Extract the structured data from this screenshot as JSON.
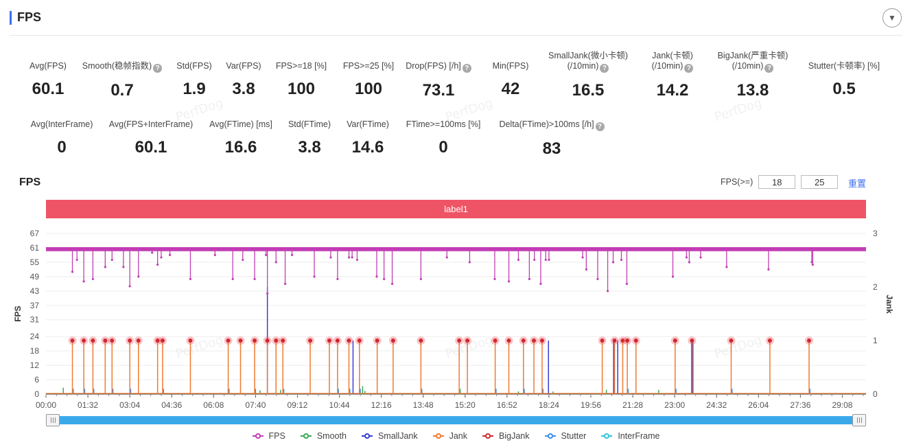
{
  "header": {
    "title": "FPS"
  },
  "stats_row1": [
    {
      "label": "Avg(FPS)",
      "value": "60.1"
    },
    {
      "label": "Smooth(稳帧指数)",
      "value": "0.7",
      "help": true
    },
    {
      "label": "Std(FPS)",
      "value": "1.9"
    },
    {
      "label": "Var(FPS)",
      "value": "3.8"
    },
    {
      "label": "FPS>=18 [%]",
      "value": "100"
    },
    {
      "label": "FPS>=25 [%]",
      "value": "100"
    },
    {
      "label": "Drop(FPS) [/h]",
      "value": "73.1",
      "help": true
    },
    {
      "label": "Min(FPS)",
      "value": "42"
    },
    {
      "label": "SmallJank(微小卡顿)",
      "label2": "(/10min)",
      "value": "16.5",
      "help": true
    },
    {
      "label": "Jank(卡顿)",
      "label2": "(/10min)",
      "value": "14.2",
      "help": true
    },
    {
      "label": "BigJank(严重卡顿)",
      "label2": "(/10min)",
      "value": "13.8",
      "help": true
    },
    {
      "label": "Stutter(卡顿率) [%]",
      "value": "0.5"
    }
  ],
  "stats_row2": [
    {
      "label": "Avg(InterFrame)",
      "value": "0"
    },
    {
      "label": "Avg(FPS+InterFrame)",
      "value": "60.1"
    },
    {
      "label": "Avg(FTime) [ms]",
      "value": "16.6"
    },
    {
      "label": "Std(FTime)",
      "value": "3.8"
    },
    {
      "label": "Var(FTime)",
      "value": "14.6"
    },
    {
      "label": "FTime>=100ms [%]",
      "value": "0"
    },
    {
      "label": "Delta(FTime)>100ms [/h]",
      "value": "83",
      "help": true
    }
  ],
  "watermark": "PerfDog",
  "chart_section": {
    "title": "FPS",
    "filter_label": "FPS(>=)",
    "filter_value_1": "18",
    "filter_value_2": "25",
    "reset_label": "重置",
    "band_label": "label1"
  },
  "colors": {
    "fps": "#c23eb4",
    "smooth": "#3bab55",
    "smalljank": "#3a3bd6",
    "jank": "#f07a30",
    "bigjank": "#d0282e",
    "stutter": "#3a8ee6",
    "interframe": "#2fc7d6"
  },
  "chart_data": {
    "type": "line",
    "title": "",
    "xlabel": "",
    "ylabel": "FPS",
    "y2label": "Jank",
    "x_ticks": [
      "00:00",
      "01:32",
      "03:04",
      "04:36",
      "06:08",
      "07:40",
      "09:12",
      "10:44",
      "12:16",
      "13:48",
      "15:20",
      "16:52",
      "18:24",
      "19:56",
      "21:28",
      "23:00",
      "24:32",
      "26:04",
      "27:36",
      "29:08"
    ],
    "x_range_sec": [
      0,
      1800
    ],
    "y_ticks": [
      0,
      6,
      12,
      18,
      24,
      31,
      37,
      43,
      49,
      55,
      61,
      67
    ],
    "ylim": [
      0,
      67
    ],
    "y2_ticks": [
      0,
      1,
      2,
      3
    ],
    "y2lim": [
      0,
      3
    ],
    "series": [
      {
        "name": "FPS",
        "baseline": 60,
        "dips": [
          [
            58,
            51
          ],
          [
            68,
            56
          ],
          [
            83,
            47
          ],
          [
            103,
            48
          ],
          [
            130,
            53
          ],
          [
            145,
            56
          ],
          [
            170,
            53
          ],
          [
            184,
            45
          ],
          [
            203,
            49
          ],
          [
            233,
            59
          ],
          [
            245,
            54
          ],
          [
            253,
            57
          ],
          [
            272,
            58
          ],
          [
            317,
            48
          ],
          [
            371,
            58
          ],
          [
            410,
            48
          ],
          [
            432,
            56
          ],
          [
            458,
            48
          ],
          [
            483,
            58
          ],
          [
            486,
            42
          ],
          [
            505,
            55
          ],
          [
            525,
            46
          ],
          [
            540,
            58
          ],
          [
            589,
            49
          ],
          [
            625,
            57
          ],
          [
            640,
            48
          ],
          [
            665,
            57
          ],
          [
            672,
            57
          ],
          [
            683,
            56
          ],
          [
            726,
            49
          ],
          [
            742,
            48
          ],
          [
            760,
            46
          ],
          [
            823,
            48
          ],
          [
            880,
            57
          ],
          [
            930,
            55
          ],
          [
            985,
            48
          ],
          [
            1016,
            47
          ],
          [
            1037,
            56
          ],
          [
            1061,
            48
          ],
          [
            1072,
            56
          ],
          [
            1086,
            46
          ],
          [
            1097,
            56
          ],
          [
            1104,
            56
          ],
          [
            1178,
            57
          ],
          [
            1186,
            52
          ],
          [
            1211,
            48
          ],
          [
            1233,
            43
          ],
          [
            1245,
            55
          ],
          [
            1263,
            56
          ],
          [
            1275,
            46
          ],
          [
            1376,
            49
          ],
          [
            1406,
            57
          ],
          [
            1412,
            55
          ],
          [
            1437,
            57
          ],
          [
            1494,
            53
          ],
          [
            1586,
            52
          ],
          [
            1681,
            55
          ],
          [
            1683,
            54
          ]
        ]
      },
      {
        "name": "Smooth",
        "spikes": [
          [
            38,
            0.12
          ],
          [
            400,
            0.08
          ],
          [
            470,
            0.07
          ],
          [
            515,
            0.08
          ],
          [
            695,
            0.15
          ],
          [
            700,
            0.06
          ],
          [
            909,
            0.1
          ],
          [
            1037,
            0.05
          ],
          [
            1113,
            0.05
          ],
          [
            1230,
            0.08
          ],
          [
            1345,
            0.08
          ]
        ]
      },
      {
        "name": "SmallJank",
        "spikes": [
          [
            486,
            2
          ],
          [
            674,
            1
          ],
          [
            1103,
            1
          ],
          [
            1246,
            1
          ],
          [
            1255,
            1
          ],
          [
            1417,
            1
          ],
          [
            1420,
            1
          ]
        ]
      },
      {
        "name": "Jank",
        "spikes": [
          58,
          83,
          103,
          130,
          145,
          184,
          203,
          245,
          256,
          317,
          400,
          427,
          458,
          486,
          505,
          520,
          580,
          622,
          640,
          665,
          688,
          727,
          762,
          823,
          907,
          925,
          986,
          1016,
          1048,
          1071,
          1089,
          1221,
          1248,
          1266,
          1276,
          1295,
          1381,
          1418,
          1504,
          1589,
          1675
        ]
      },
      {
        "name": "BigJank",
        "spikes": [
          58,
          83,
          103,
          130,
          145,
          184,
          203,
          245,
          256,
          317,
          400,
          427,
          458,
          486,
          505,
          520,
          580,
          622,
          640,
          665,
          688,
          727,
          762,
          823,
          907,
          925,
          986,
          1016,
          1048,
          1071,
          1089,
          1221,
          1248,
          1266,
          1276,
          1295,
          1381,
          1418,
          1504,
          1589,
          1675
        ]
      },
      {
        "name": "Stutter",
        "spikes": [
          58,
          83,
          103,
          145,
          184,
          256,
          400,
          458,
          520,
          640,
          665,
          688,
          823,
          986,
          1048,
          1089,
          1276,
          1381,
          1418,
          1504,
          1675
        ]
      },
      {
        "name": "InterFrame",
        "spikes": []
      }
    ]
  },
  "legend": [
    {
      "name": "FPS",
      "color": "#c23eb4"
    },
    {
      "name": "Smooth",
      "color": "#3bab55"
    },
    {
      "name": "SmallJank",
      "color": "#3a3bd6"
    },
    {
      "name": "Jank",
      "color": "#f07a30"
    },
    {
      "name": "BigJank",
      "color": "#d0282e"
    },
    {
      "name": "Stutter",
      "color": "#3a8ee6"
    },
    {
      "name": "InterFrame",
      "color": "#2fc7d6"
    }
  ]
}
